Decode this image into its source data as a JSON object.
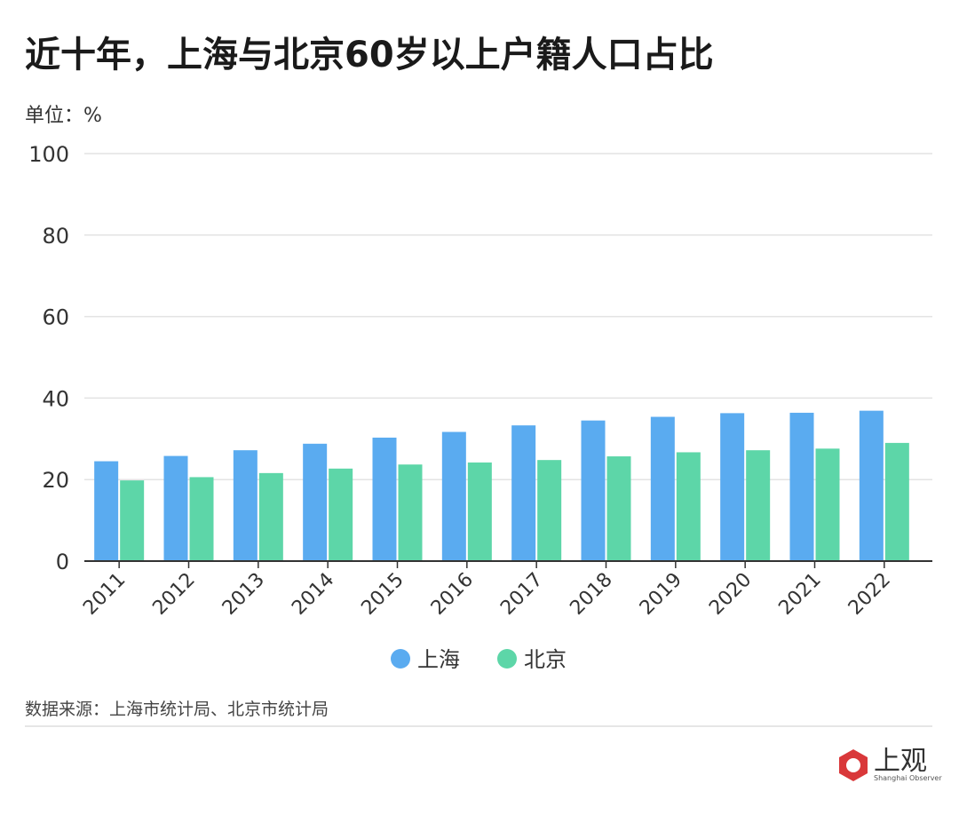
{
  "chart_data": {
    "type": "bar",
    "title": "近十年，上海与北京60岁以上户籍人口占比",
    "unit_label": "单位：%",
    "categories": [
      "2011",
      "2012",
      "2013",
      "2014",
      "2015",
      "2016",
      "2017",
      "2018",
      "2019",
      "2020",
      "2021",
      "2022"
    ],
    "series": [
      {
        "name": "上海",
        "color": "#5aabf0",
        "values": [
          24.5,
          25.8,
          27.2,
          28.8,
          30.3,
          31.7,
          33.3,
          34.5,
          35.4,
          36.3,
          36.4,
          36.9
        ]
      },
      {
        "name": "北京",
        "color": "#5dd6a8",
        "values": [
          19.8,
          20.6,
          21.6,
          22.7,
          23.7,
          24.2,
          24.8,
          25.7,
          26.7,
          27.2,
          27.6,
          29.0
        ]
      }
    ],
    "ylim": [
      0,
      100
    ],
    "yticks": [
      "0",
      "20",
      "40",
      "60",
      "80",
      "100"
    ],
    "grid": true,
    "legend_position": "bottom"
  },
  "source": "数据来源：上海市统计局、北京市统计局",
  "logo": {
    "cn": "上观",
    "en": "Shanghai Observer",
    "color": "#d9383a"
  }
}
